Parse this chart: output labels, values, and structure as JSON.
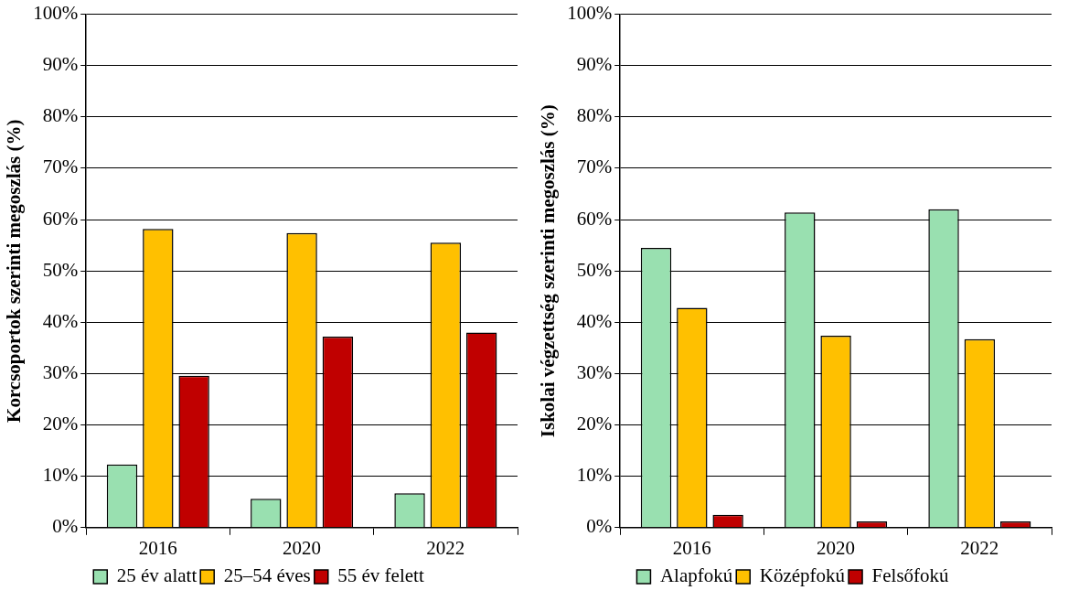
{
  "chart_data": [
    {
      "type": "bar",
      "ylabel": "Korcsoportok szerinti megoszlás (%)",
      "categories": [
        "2016",
        "2020",
        "2022"
      ],
      "series": [
        {
          "name": "25 év alatt",
          "color": "#99e0b0",
          "values": [
            12.3,
            5.6,
            6.7
          ]
        },
        {
          "name": "25–54 éves",
          "color": "#ffc000",
          "values": [
            58.2,
            57.4,
            55.5
          ]
        },
        {
          "name": "55 év felett",
          "color": "#c00000",
          "values": [
            29.6,
            37.2,
            38.0
          ]
        }
      ],
      "ylim": [
        0,
        100
      ],
      "yticks": [
        {
          "value": 0,
          "label": "0%"
        },
        {
          "value": 10,
          "label": "10%"
        },
        {
          "value": 20,
          "label": "20%"
        },
        {
          "value": 30,
          "label": "30%"
        },
        {
          "value": 40,
          "label": "40%"
        },
        {
          "value": 50,
          "label": "50%"
        },
        {
          "value": 60,
          "label": "60%"
        },
        {
          "value": 70,
          "label": "70%"
        },
        {
          "value": 80,
          "label": "80%"
        },
        {
          "value": 90,
          "label": "90%"
        },
        {
          "value": 100,
          "label": "100%"
        }
      ],
      "grid": "y",
      "legend": "bottom"
    },
    {
      "type": "bar",
      "ylabel": "Iskolai végzettség szerinti megoszlás (%)",
      "categories": [
        "2016",
        "2020",
        "2022"
      ],
      "series": [
        {
          "name": "Alapfokú",
          "color": "#99e0b0",
          "values": [
            54.5,
            61.4,
            62.0
          ]
        },
        {
          "name": "Középfokú",
          "color": "#ffc000",
          "values": [
            42.8,
            37.4,
            36.7
          ]
        },
        {
          "name": "Felsőfokú",
          "color": "#c00000",
          "values": [
            2.5,
            1.2,
            1.2
          ]
        }
      ],
      "ylim": [
        0,
        100
      ],
      "yticks": [
        {
          "value": 0,
          "label": "0%"
        },
        {
          "value": 10,
          "label": "10%"
        },
        {
          "value": 20,
          "label": "20%"
        },
        {
          "value": 30,
          "label": "30%"
        },
        {
          "value": 40,
          "label": "40%"
        },
        {
          "value": 50,
          "label": "50%"
        },
        {
          "value": 60,
          "label": "60%"
        },
        {
          "value": 70,
          "label": "70%"
        },
        {
          "value": 80,
          "label": "80%"
        },
        {
          "value": 90,
          "label": "90%"
        },
        {
          "value": 100,
          "label": "100%"
        }
      ],
      "grid": "y",
      "legend": "bottom"
    }
  ]
}
